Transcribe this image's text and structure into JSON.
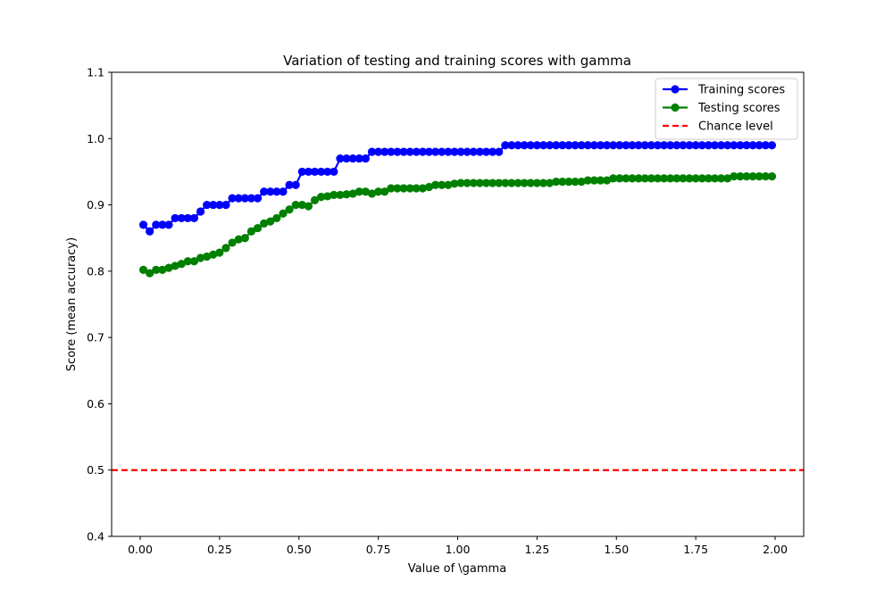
{
  "chart_data": {
    "type": "line",
    "title": "Variation of testing and training scores with gamma",
    "xlabel": "Value of \\gamma",
    "ylabel": "Score (mean accuracy)",
    "xlim": [
      -0.09,
      2.09
    ],
    "ylim": [
      0.4,
      1.1
    ],
    "xticks": [
      0.0,
      0.25,
      0.5,
      0.75,
      1.0,
      1.25,
      1.5,
      1.75,
      2.0
    ],
    "xtick_labels": [
      "0.00",
      "0.25",
      "0.50",
      "0.75",
      "1.00",
      "1.25",
      "1.50",
      "1.75",
      "2.00"
    ],
    "yticks": [
      0.4,
      0.5,
      0.6,
      0.7,
      0.8,
      0.9,
      1.0,
      1.1
    ],
    "ytick_labels": [
      "0.4",
      "0.5",
      "0.6",
      "0.7",
      "0.8",
      "0.9",
      "1.0",
      "1.1"
    ],
    "grid": false,
    "legend_position": "top-right",
    "series": [
      {
        "name": "Training scores",
        "color": "#0000ff",
        "style": "solid",
        "marker": "circle",
        "x": [
          0.01,
          0.03,
          0.05,
          0.07,
          0.09,
          0.11,
          0.13,
          0.15,
          0.17,
          0.19,
          0.21,
          0.23,
          0.25,
          0.27,
          0.29,
          0.31,
          0.33,
          0.35,
          0.37,
          0.39,
          0.41,
          0.43,
          0.45,
          0.47,
          0.49,
          0.51,
          0.53,
          0.55,
          0.57,
          0.59,
          0.61,
          0.63,
          0.65,
          0.67,
          0.69,
          0.71,
          0.73,
          0.75,
          0.77,
          0.79,
          0.81,
          0.83,
          0.85,
          0.87,
          0.89,
          0.91,
          0.93,
          0.95,
          0.97,
          0.99,
          1.01,
          1.03,
          1.05,
          1.07,
          1.09,
          1.11,
          1.13,
          1.15,
          1.17,
          1.19,
          1.21,
          1.23,
          1.25,
          1.27,
          1.29,
          1.31,
          1.33,
          1.35,
          1.37,
          1.39,
          1.41,
          1.43,
          1.45,
          1.47,
          1.49,
          1.51,
          1.53,
          1.55,
          1.57,
          1.59,
          1.61,
          1.63,
          1.65,
          1.67,
          1.69,
          1.71,
          1.73,
          1.75,
          1.77,
          1.79,
          1.81,
          1.83,
          1.85,
          1.87,
          1.89,
          1.91,
          1.93,
          1.95,
          1.97,
          1.99
        ],
        "y": [
          0.87,
          0.86,
          0.87,
          0.87,
          0.87,
          0.88,
          0.88,
          0.88,
          0.88,
          0.89,
          0.9,
          0.9,
          0.9,
          0.9,
          0.91,
          0.91,
          0.91,
          0.91,
          0.91,
          0.92,
          0.92,
          0.92,
          0.92,
          0.93,
          0.93,
          0.95,
          0.95,
          0.95,
          0.95,
          0.95,
          0.95,
          0.97,
          0.97,
          0.97,
          0.97,
          0.97,
          0.98,
          0.98,
          0.98,
          0.98,
          0.98,
          0.98,
          0.98,
          0.98,
          0.98,
          0.98,
          0.98,
          0.98,
          0.98,
          0.98,
          0.98,
          0.98,
          0.98,
          0.98,
          0.98,
          0.98,
          0.98,
          0.99,
          0.99,
          0.99,
          0.99,
          0.99,
          0.99,
          0.99,
          0.99,
          0.99,
          0.99,
          0.99,
          0.99,
          0.99,
          0.99,
          0.99,
          0.99,
          0.99,
          0.99,
          0.99,
          0.99,
          0.99,
          0.99,
          0.99,
          0.99,
          0.99,
          0.99,
          0.99,
          0.99,
          0.99,
          0.99,
          0.99,
          0.99,
          0.99,
          0.99,
          0.99,
          0.99,
          0.99,
          0.99,
          0.99,
          0.99,
          0.99,
          0.99,
          0.99
        ]
      },
      {
        "name": "Testing scores",
        "color": "#008000",
        "style": "solid",
        "marker": "circle",
        "x": [
          0.01,
          0.03,
          0.05,
          0.07,
          0.09,
          0.11,
          0.13,
          0.15,
          0.17,
          0.19,
          0.21,
          0.23,
          0.25,
          0.27,
          0.29,
          0.31,
          0.33,
          0.35,
          0.37,
          0.39,
          0.41,
          0.43,
          0.45,
          0.47,
          0.49,
          0.51,
          0.53,
          0.55,
          0.57,
          0.59,
          0.61,
          0.63,
          0.65,
          0.67,
          0.69,
          0.71,
          0.73,
          0.75,
          0.77,
          0.79,
          0.81,
          0.83,
          0.85,
          0.87,
          0.89,
          0.91,
          0.93,
          0.95,
          0.97,
          0.99,
          1.01,
          1.03,
          1.05,
          1.07,
          1.09,
          1.11,
          1.13,
          1.15,
          1.17,
          1.19,
          1.21,
          1.23,
          1.25,
          1.27,
          1.29,
          1.31,
          1.33,
          1.35,
          1.37,
          1.39,
          1.41,
          1.43,
          1.45,
          1.47,
          1.49,
          1.51,
          1.53,
          1.55,
          1.57,
          1.59,
          1.61,
          1.63,
          1.65,
          1.67,
          1.69,
          1.71,
          1.73,
          1.75,
          1.77,
          1.79,
          1.81,
          1.83,
          1.85,
          1.87,
          1.89,
          1.91,
          1.93,
          1.95,
          1.97,
          1.99
        ],
        "y": [
          0.802,
          0.797,
          0.802,
          0.802,
          0.805,
          0.808,
          0.811,
          0.815,
          0.815,
          0.82,
          0.822,
          0.825,
          0.828,
          0.835,
          0.843,
          0.848,
          0.85,
          0.86,
          0.865,
          0.872,
          0.875,
          0.88,
          0.887,
          0.893,
          0.9,
          0.9,
          0.898,
          0.907,
          0.912,
          0.913,
          0.915,
          0.915,
          0.916,
          0.917,
          0.92,
          0.92,
          0.917,
          0.92,
          0.92,
          0.925,
          0.925,
          0.925,
          0.925,
          0.925,
          0.925,
          0.927,
          0.93,
          0.93,
          0.93,
          0.932,
          0.933,
          0.933,
          0.933,
          0.933,
          0.933,
          0.933,
          0.933,
          0.933,
          0.933,
          0.933,
          0.933,
          0.933,
          0.933,
          0.933,
          0.933,
          0.935,
          0.935,
          0.935,
          0.935,
          0.935,
          0.937,
          0.937,
          0.937,
          0.937,
          0.94,
          0.94,
          0.94,
          0.94,
          0.94,
          0.94,
          0.94,
          0.94,
          0.94,
          0.94,
          0.94,
          0.94,
          0.94,
          0.94,
          0.94,
          0.94,
          0.94,
          0.94,
          0.94,
          0.943,
          0.943,
          0.943,
          0.943,
          0.943,
          0.943,
          0.943
        ]
      },
      {
        "name": "Chance level",
        "color": "#ff0000",
        "style": "dashed",
        "marker": "none",
        "y_constant": 0.5
      }
    ]
  }
}
